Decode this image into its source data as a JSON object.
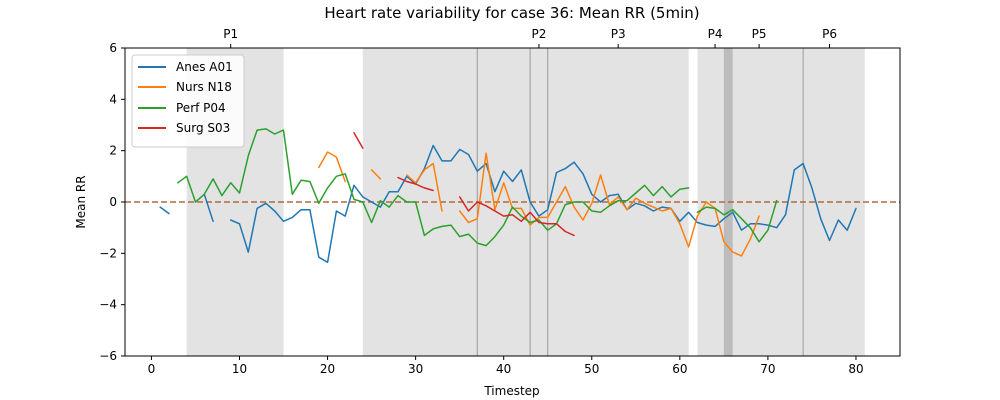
{
  "chart_data": {
    "type": "line",
    "title": "Heart rate variability for case 36: Mean RR (5min)",
    "xlabel": "Timestep",
    "ylabel": "Mean RR",
    "xlim": [
      -3,
      85
    ],
    "ylim": [
      -6,
      6
    ],
    "xticks": [
      0,
      10,
      20,
      30,
      40,
      50,
      60,
      70,
      80
    ],
    "yticks": [
      -6,
      -4,
      -2,
      0,
      2,
      4,
      6
    ],
    "ytick_labels": [
      "−6",
      "−4",
      "−2",
      "0",
      "2",
      "4",
      "6"
    ],
    "reference_line": {
      "y": 0,
      "style": "dashed",
      "color": "#b06a3c"
    },
    "grid": false,
    "legend_position": "top-left",
    "shaded_regions": [
      {
        "x0": 4,
        "x1": 15
      },
      {
        "x0": 24,
        "x1": 61
      },
      {
        "x0": 62,
        "x1": 81
      },
      {
        "x0": 65,
        "x1": 66,
        "darker": true
      }
    ],
    "phase_lines": [
      37,
      43,
      45,
      74
    ],
    "phases": [
      {
        "label": "P1",
        "x": 9
      },
      {
        "label": "P2",
        "x": 44
      },
      {
        "label": "P3",
        "x": 53
      },
      {
        "label": "P4",
        "x": 64
      },
      {
        "label": "P5",
        "x": 69
      },
      {
        "label": "P6",
        "x": 77
      }
    ],
    "series": [
      {
        "name": "Anes A01",
        "color": "#1f77b4",
        "segments": [
          [
            [
              1,
              -0.2
            ],
            [
              2,
              -0.45
            ]
          ],
          [
            [
              6,
              0.3
            ],
            [
              7,
              -0.75
            ]
          ],
          [
            [
              9,
              -0.7
            ],
            [
              10,
              -0.85
            ],
            [
              11,
              -1.95
            ],
            [
              12,
              -0.25
            ],
            [
              13,
              -0.05
            ],
            [
              14,
              -0.35
            ],
            [
              15,
              -0.75
            ],
            [
              16,
              -0.6
            ],
            [
              17,
              -0.3
            ],
            [
              18,
              -0.3
            ],
            [
              19,
              -2.15
            ],
            [
              20,
              -2.35
            ],
            [
              21,
              -0.35
            ],
            [
              22,
              -0.55
            ],
            [
              23,
              0.65
            ],
            [
              24,
              0.2
            ],
            [
              25,
              0.0
            ],
            [
              26,
              -0.2
            ],
            [
              27,
              0.4
            ],
            [
              28,
              0.4
            ],
            [
              29,
              1.0
            ],
            [
              30,
              0.7
            ],
            [
              31,
              1.3
            ],
            [
              32,
              2.2
            ],
            [
              33,
              1.6
            ],
            [
              34,
              1.6
            ],
            [
              35,
              2.05
            ],
            [
              36,
              1.85
            ],
            [
              37,
              1.2
            ],
            [
              38,
              1.5
            ],
            [
              39,
              0.4
            ],
            [
              40,
              1.2
            ],
            [
              41,
              0.8
            ],
            [
              42,
              1.25
            ],
            [
              43,
              0.0
            ],
            [
              44,
              -0.55
            ],
            [
              45,
              -0.3
            ],
            [
              46,
              1.15
            ],
            [
              47,
              1.3
            ],
            [
              48,
              1.55
            ],
            [
              49,
              1.1
            ],
            [
              50,
              0.3
            ],
            [
              51,
              0.0
            ],
            [
              52,
              0.25
            ],
            [
              53,
              0.3
            ],
            [
              54,
              -0.3
            ],
            [
              55,
              -0.05
            ],
            [
              56,
              -0.15
            ],
            [
              57,
              -0.35
            ],
            [
              58,
              -0.2
            ],
            [
              59,
              -0.25
            ],
            [
              60,
              -0.75
            ],
            [
              61,
              -0.4
            ],
            [
              62,
              -0.8
            ],
            [
              63,
              -0.9
            ],
            [
              64,
              -0.95
            ],
            [
              65,
              -0.65
            ],
            [
              66,
              -0.4
            ],
            [
              67,
              -1.1
            ],
            [
              68,
              -0.85
            ],
            [
              69,
              -0.85
            ],
            [
              70,
              -0.9
            ],
            [
              71,
              -1.0
            ],
            [
              72,
              -0.5
            ],
            [
              73,
              1.25
            ],
            [
              74,
              1.5
            ],
            [
              75,
              0.55
            ],
            [
              76,
              -0.65
            ],
            [
              77,
              -1.5
            ],
            [
              78,
              -0.7
            ],
            [
              79,
              -1.1
            ],
            [
              80,
              -0.25
            ]
          ]
        ]
      },
      {
        "name": "Nurs N18",
        "color": "#ff7f0e",
        "segments": [
          [
            [
              19,
              1.35
            ],
            [
              20,
              1.95
            ],
            [
              21,
              1.75
            ],
            [
              22,
              0.8
            ]
          ],
          [
            [
              25,
              1.25
            ],
            [
              26,
              0.9
            ]
          ],
          [
            [
              29,
              1.05
            ],
            [
              30,
              0.75
            ],
            [
              31,
              1.25
            ],
            [
              32,
              1.5
            ],
            [
              33,
              -0.35
            ]
          ],
          [
            [
              35,
              -0.35
            ],
            [
              36,
              -0.8
            ],
            [
              37,
              -0.65
            ],
            [
              38,
              1.9
            ],
            [
              39,
              -0.3
            ],
            [
              40,
              0.75
            ],
            [
              41,
              -0.25
            ],
            [
              42,
              -0.25
            ],
            [
              43,
              -0.9
            ],
            [
              44,
              -0.6
            ],
            [
              45,
              -0.6
            ],
            [
              46,
              0.0
            ],
            [
              47,
              0.6
            ],
            [
              48,
              -0.2
            ],
            [
              49,
              -0.7
            ],
            [
              50,
              -0.05
            ],
            [
              51,
              1.05
            ],
            [
              52,
              -0.1
            ],
            [
              53,
              0.2
            ],
            [
              54,
              -0.3
            ],
            [
              55,
              0.15
            ],
            [
              56,
              -0.05
            ],
            [
              57,
              -0.2
            ],
            [
              58,
              -0.35
            ],
            [
              59,
              -0.25
            ],
            [
              60,
              -0.85
            ],
            [
              61,
              -1.75
            ],
            [
              62,
              -0.55
            ],
            [
              63,
              0.0
            ],
            [
              64,
              -0.25
            ],
            [
              65,
              -1.55
            ],
            [
              66,
              -1.95
            ],
            [
              67,
              -2.1
            ],
            [
              68,
              -1.45
            ],
            [
              69,
              -0.55
            ]
          ]
        ]
      },
      {
        "name": "Perf P04",
        "color": "#2ca02c",
        "segments": [
          [
            [
              3,
              0.75
            ],
            [
              4,
              1.0
            ],
            [
              5,
              0.0
            ],
            [
              6,
              0.3
            ],
            [
              7,
              0.9
            ],
            [
              8,
              0.25
            ],
            [
              9,
              0.75
            ],
            [
              10,
              0.35
            ],
            [
              11,
              1.8
            ],
            [
              12,
              2.8
            ],
            [
              13,
              2.85
            ],
            [
              14,
              2.65
            ],
            [
              15,
              2.8
            ],
            [
              16,
              0.3
            ],
            [
              17,
              0.85
            ],
            [
              18,
              0.8
            ],
            [
              19,
              -0.05
            ],
            [
              20,
              0.55
            ],
            [
              21,
              1.0
            ],
            [
              22,
              1.1
            ],
            [
              23,
              0.1
            ],
            [
              24,
              0.0
            ],
            [
              25,
              -0.8
            ],
            [
              26,
              0.05
            ],
            [
              27,
              -0.2
            ],
            [
              28,
              0.25
            ],
            [
              29,
              0.0
            ],
            [
              30,
              0.0
            ],
            [
              31,
              -1.3
            ],
            [
              32,
              -1.05
            ],
            [
              33,
              -0.95
            ],
            [
              34,
              -0.9
            ],
            [
              35,
              -1.35
            ],
            [
              36,
              -1.25
            ],
            [
              37,
              -1.6
            ],
            [
              38,
              -1.7
            ],
            [
              39,
              -1.35
            ],
            [
              40,
              -0.9
            ],
            [
              41,
              -0.2
            ],
            [
              42,
              -0.55
            ],
            [
              43,
              -0.8
            ],
            [
              44,
              -0.7
            ],
            [
              45,
              -1.1
            ],
            [
              46,
              -0.85
            ],
            [
              47,
              -0.1
            ],
            [
              48,
              0.0
            ],
            [
              49,
              0.0
            ],
            [
              50,
              -0.35
            ],
            [
              51,
              -0.4
            ],
            [
              52,
              -0.15
            ],
            [
              53,
              0.05
            ],
            [
              54,
              0.05
            ],
            [
              55,
              0.35
            ],
            [
              56,
              0.65
            ],
            [
              57,
              0.25
            ],
            [
              58,
              0.6
            ],
            [
              59,
              0.2
            ],
            [
              60,
              0.5
            ],
            [
              61,
              0.55
            ]
          ],
          [
            [
              62,
              -0.4
            ],
            [
              63,
              -0.2
            ],
            [
              64,
              -0.25
            ],
            [
              65,
              -0.5
            ],
            [
              66,
              -0.3
            ],
            [
              67,
              -0.65
            ],
            [
              68,
              -1.0
            ],
            [
              69,
              -1.55
            ],
            [
              70,
              -1.1
            ],
            [
              71,
              0.05
            ]
          ]
        ]
      },
      {
        "name": "Surg S03",
        "color": "#d62728",
        "segments": [
          [
            [
              23,
              2.7
            ],
            [
              24,
              2.1
            ]
          ],
          [
            [
              28,
              0.95
            ],
            [
              29,
              0.8
            ],
            [
              30,
              0.7
            ],
            [
              31,
              0.55
            ],
            [
              32,
              0.45
            ]
          ],
          [
            [
              35,
              0.2
            ],
            [
              36,
              -0.35
            ],
            [
              37,
              0.0
            ],
            [
              38,
              -0.15
            ],
            [
              39,
              -0.35
            ],
            [
              40,
              -0.55
            ],
            [
              41,
              -0.5
            ],
            [
              42,
              -0.75
            ],
            [
              43,
              -0.4
            ],
            [
              44,
              -0.8
            ],
            [
              45,
              -0.85
            ],
            [
              46,
              -0.85
            ],
            [
              47,
              -1.15
            ],
            [
              48,
              -1.3
            ]
          ]
        ]
      }
    ]
  }
}
